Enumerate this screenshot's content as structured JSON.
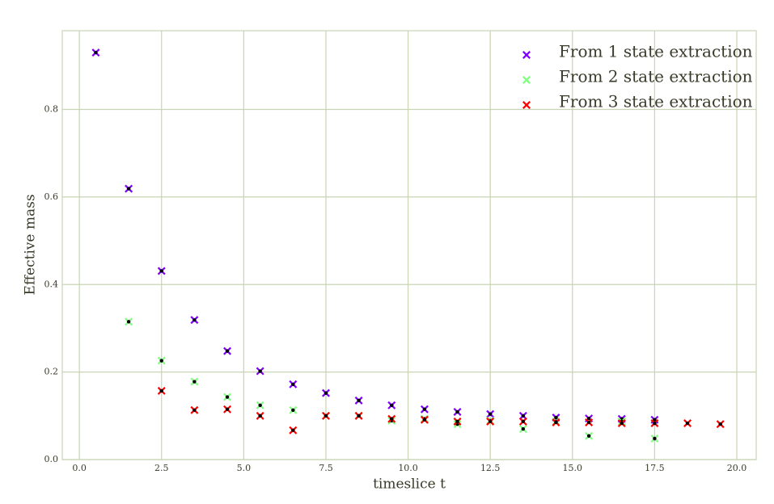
{
  "chart_data": {
    "type": "scatter",
    "xlabel": "timeslice t",
    "ylabel": "Effective mass",
    "xlim": [
      -0.52,
      20.59
    ],
    "ylim": [
      0,
      0.98
    ],
    "xticks": [
      {
        "value": 0,
        "label": "0.0"
      },
      2.5,
      {
        "value": 5,
        "label": "5.0"
      },
      7.5,
      {
        "value": 10,
        "label": "10.0"
      },
      12.5,
      {
        "value": 15,
        "label": "15.0"
      },
      17.5,
      {
        "value": 20,
        "label": "20.0"
      }
    ],
    "yticks": [
      {
        "value": 0,
        "label": "0.0"
      },
      0.2,
      0.4,
      0.6,
      0.8
    ],
    "grid": true,
    "legend": "upper right",
    "series": [
      {
        "name": "From 1 state extraction",
        "color": "#8000ff",
        "x": [
          0.5,
          1.5,
          2.5,
          3.5,
          4.5,
          5.5,
          6.5,
          7.5,
          8.5,
          9.5,
          10.5,
          11.5,
          12.5,
          13.5,
          14.5,
          15.5,
          16.5,
          17.5
        ],
        "values": [
          0.93,
          0.619,
          0.431,
          0.319,
          0.248,
          0.202,
          0.172,
          0.152,
          0.135,
          0.124,
          0.115,
          0.109,
          0.104,
          0.1,
          0.096,
          0.094,
          0.093,
          0.091
        ]
      },
      {
        "name": "From 2 state extraction",
        "color": "#80ff80",
        "x": [
          1.5,
          2.5,
          3.5,
          4.5,
          5.5,
          6.5,
          7.5,
          8.5,
          9.5,
          10.5,
          11.5,
          12.5,
          13.5,
          14.5,
          15.5,
          16.5,
          17.5
        ],
        "values": [
          0.315,
          0.226,
          0.178,
          0.143,
          0.124,
          0.113,
          0.1,
          0.1,
          0.089,
          0.093,
          0.081,
          0.089,
          0.07,
          0.087,
          0.054,
          0.087,
          0.048
        ]
      },
      {
        "name": "From 3 state extraction",
        "color": "#ff0000",
        "x": [
          2.5,
          3.5,
          4.5,
          5.5,
          6.5,
          7.5,
          8.5,
          9.5,
          10.5,
          11.5,
          12.5,
          13.5,
          14.5,
          15.5,
          16.5,
          17.5,
          18.5,
          19.5
        ],
        "values": [
          0.157,
          0.113,
          0.115,
          0.1,
          0.067,
          0.1,
          0.1,
          0.093,
          0.091,
          0.087,
          0.087,
          0.087,
          0.085,
          0.085,
          0.083,
          0.083,
          0.083,
          0.081
        ]
      }
    ]
  }
}
